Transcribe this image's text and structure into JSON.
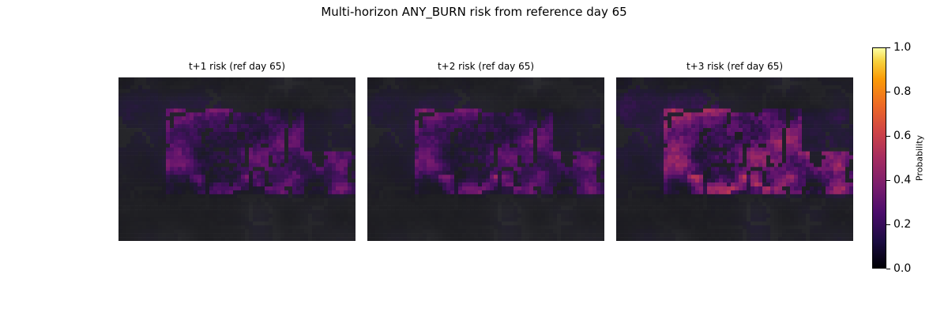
{
  "figure": {
    "title": "Multi-horizon ANY_BURN risk from reference day 65"
  },
  "chart_data": [
    {
      "type": "heatmap",
      "title": "t+1 risk (ref day 65)",
      "horizon": 1,
      "reference_day": 65,
      "value_range": [
        0.0,
        1.0
      ],
      "colormap": "inferno",
      "peak_value": 0.55,
      "typical_range": [
        0.0,
        0.35
      ]
    },
    {
      "type": "heatmap",
      "title": "t+2 risk (ref day 65)",
      "horizon": 2,
      "reference_day": 65,
      "value_range": [
        0.0,
        1.0
      ],
      "colormap": "inferno",
      "peak_value": 0.6,
      "typical_range": [
        0.0,
        0.35
      ]
    },
    {
      "type": "heatmap",
      "title": "t+3 risk (ref day 65)",
      "horizon": 3,
      "reference_day": 65,
      "value_range": [
        0.0,
        1.0
      ],
      "colormap": "inferno",
      "peak_value": 0.7,
      "typical_range": [
        0.0,
        0.45
      ]
    }
  ],
  "colorbar": {
    "label": "Probability",
    "ticks": [
      "0.0",
      "0.2",
      "0.4",
      "0.6",
      "0.8",
      "1.0"
    ],
    "tick_values": [
      0.0,
      0.2,
      0.4,
      0.6,
      0.8,
      1.0
    ],
    "colormap": "inferno"
  }
}
